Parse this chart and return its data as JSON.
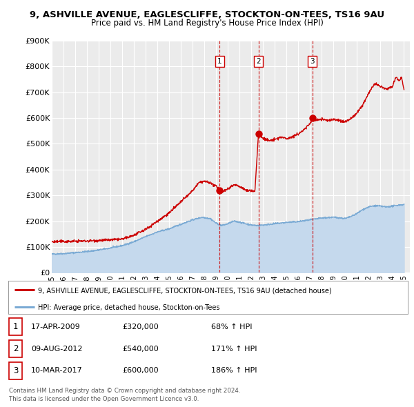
{
  "title_line1": "9, ASHVILLE AVENUE, EAGLESCLIFFE, STOCKTON-ON-TEES, TS16 9AU",
  "title_line2": "Price paid vs. HM Land Registry's House Price Index (HPI)",
  "ylim": [
    0,
    900000
  ],
  "xlim_start": 1995.0,
  "xlim_end": 2025.5,
  "ytick_labels": [
    "£0",
    "£100K",
    "£200K",
    "£300K",
    "£400K",
    "£500K",
    "£600K",
    "£700K",
    "£800K",
    "£900K"
  ],
  "ytick_vals": [
    0,
    100000,
    200000,
    300000,
    400000,
    500000,
    600000,
    700000,
    800000,
    900000
  ],
  "xticks": [
    1995,
    1996,
    1997,
    1998,
    1999,
    2000,
    2001,
    2002,
    2003,
    2004,
    2005,
    2006,
    2007,
    2008,
    2009,
    2010,
    2011,
    2012,
    2013,
    2014,
    2015,
    2016,
    2017,
    2018,
    2019,
    2020,
    2021,
    2022,
    2023,
    2024,
    2025
  ],
  "sale_color": "#cc0000",
  "hpi_color": "#7aaad4",
  "hpi_fill_color": "#c5d9ed",
  "background_color": "#ffffff",
  "plot_bg_color": "#ebebeb",
  "grid_color": "#ffffff",
  "transactions": [
    {
      "date_num": 2009.29,
      "price": 320000,
      "label": "1"
    },
    {
      "date_num": 2012.61,
      "price": 540000,
      "label": "2"
    },
    {
      "date_num": 2017.19,
      "price": 600000,
      "label": "3"
    }
  ],
  "legend_sale_label": "9, ASHVILLE AVENUE, EAGLESCLIFFE, STOCKTON-ON-TEES, TS16 9AU (detached house)",
  "legend_hpi_label": "HPI: Average price, detached house, Stockton-on-Tees",
  "table_rows": [
    {
      "num": "1",
      "date": "17-APR-2009",
      "price": "£320,000",
      "change": "68% ↑ HPI"
    },
    {
      "num": "2",
      "date": "09-AUG-2012",
      "price": "£540,000",
      "change": "171% ↑ HPI"
    },
    {
      "num": "3",
      "date": "10-MAR-2017",
      "price": "£600,000",
      "change": "186% ↑ HPI"
    }
  ],
  "footer_line1": "Contains HM Land Registry data © Crown copyright and database right 2024.",
  "footer_line2": "This data is licensed under the Open Government Licence v3.0."
}
